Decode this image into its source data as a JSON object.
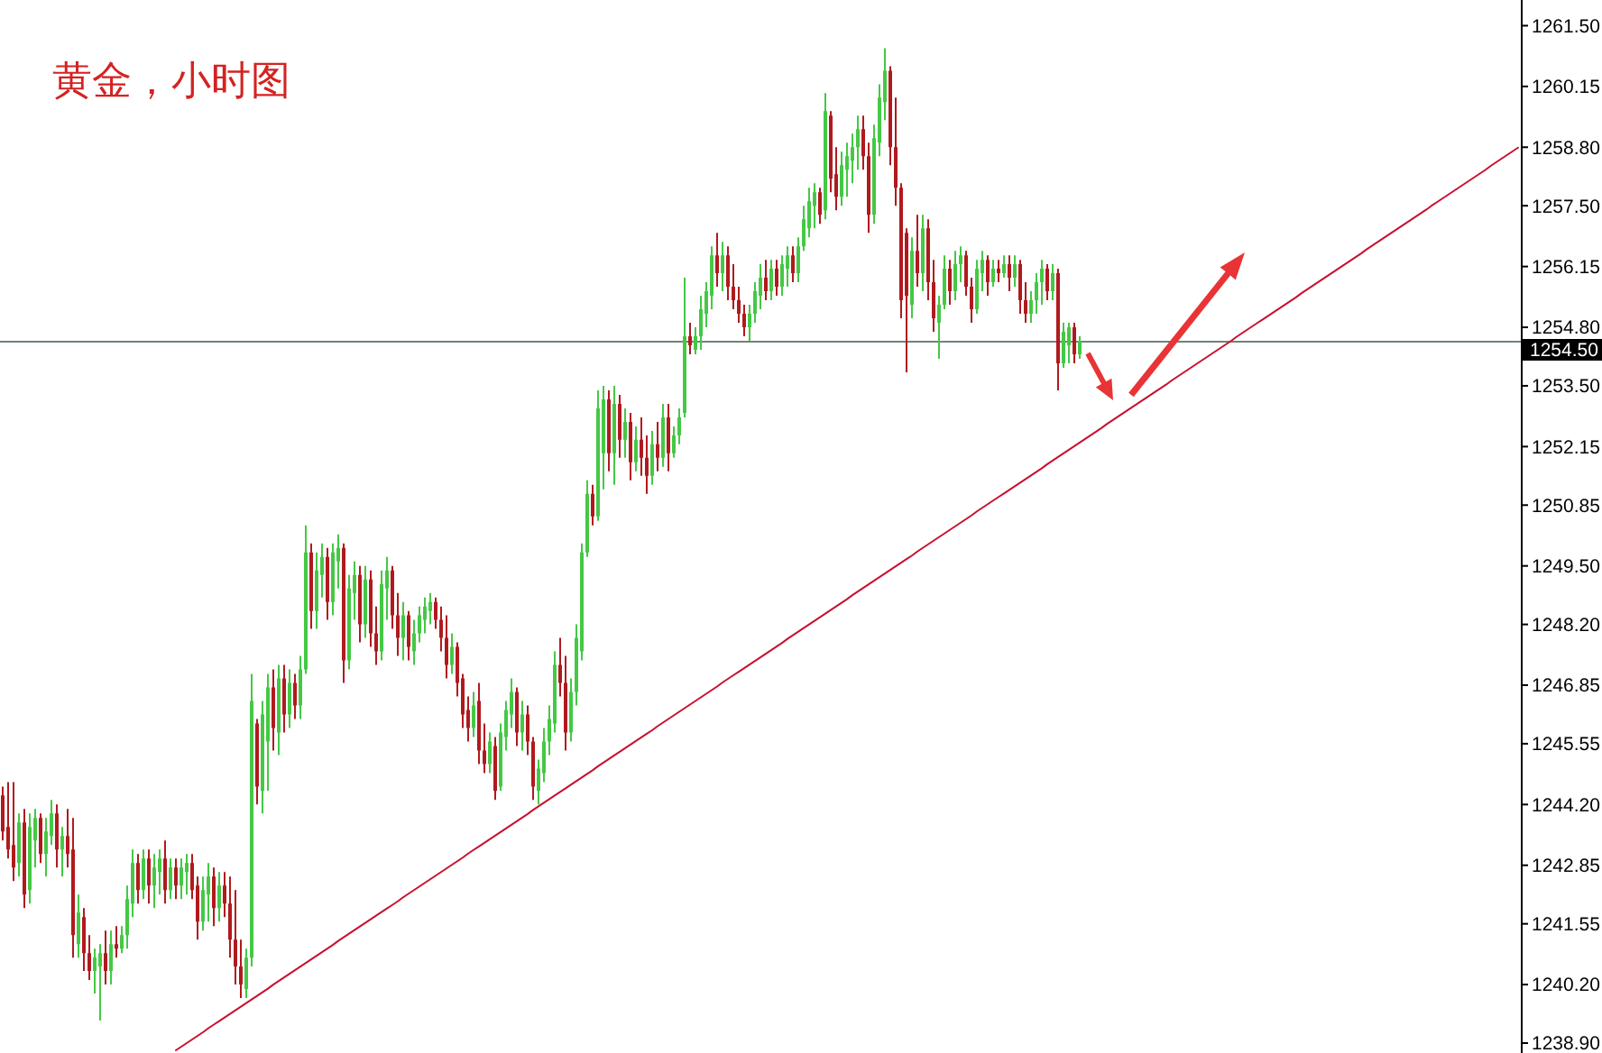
{
  "chart_data": {
    "type": "candlestick",
    "title": "黄金，小时图",
    "categories": [
      null,
      null,
      null,
      null,
      null,
      null,
      null,
      null,
      null,
      null,
      null,
      null,
      null,
      null,
      null,
      null,
      null,
      null,
      null,
      null,
      null,
      null,
      null,
      null,
      null,
      null,
      null,
      null,
      null,
      null,
      null,
      null,
      null,
      null,
      null,
      null,
      null,
      null,
      null,
      null,
      null,
      null,
      null,
      null,
      null,
      null,
      null,
      null,
      null,
      null,
      null,
      null,
      null,
      null,
      null,
      null,
      null,
      null,
      null,
      null,
      null,
      null,
      null,
      null,
      null,
      null,
      null,
      null,
      null,
      null,
      null,
      null,
      null,
      null,
      null,
      null,
      null,
      null,
      null,
      null,
      null,
      null,
      null,
      null,
      null,
      null,
      null,
      null,
      null,
      null,
      null,
      null,
      null,
      null,
      null,
      null,
      null,
      null,
      null,
      null,
      null,
      null,
      null,
      null,
      null,
      null,
      null,
      null,
      null,
      null,
      null,
      null,
      null,
      null,
      null,
      null,
      null,
      null,
      null,
      null,
      null,
      null,
      null,
      null,
      null,
      null,
      null,
      null,
      null,
      null,
      null,
      null,
      null,
      null,
      null,
      null,
      null,
      null,
      null,
      null,
      null,
      null,
      null,
      null,
      null,
      null,
      null,
      null,
      null,
      null,
      null,
      null,
      null,
      null,
      null,
      null,
      null,
      null,
      null,
      null,
      null,
      null,
      null,
      null,
      null,
      null,
      null,
      null,
      null,
      null,
      null,
      null,
      null,
      null,
      null,
      null,
      null,
      null,
      null,
      null,
      null,
      null,
      null,
      null,
      null,
      null,
      null,
      null,
      null,
      null,
      null,
      null,
      null,
      null,
      null,
      null,
      null,
      null,
      null,
      null,
      null,
      null,
      null,
      null,
      null,
      null,
      null,
      null,
      null,
      null,
      null,
      null,
      null,
      null,
      null,
      null,
      null,
      null,
      null,
      null,
      null,
      null,
      null,
      null,
      null,
      null,
      null,
      null,
      null,
      null,
      null,
      null,
      null,
      null,
      null,
      null,
      null,
      null,
      null,
      null,
      null,
      null,
      null,
      null,
      null,
      null,
      null,
      null,
      null,
      null,
      null,
      null,
      null,
      null,
      null,
      null,
      null,
      null,
      null,
      null,
      null,
      null,
      null,
      null,
      null,
      null,
      null,
      null,
      null,
      null,
      null,
      null,
      null,
      null,
      null,
      null,
      null,
      null,
      null,
      null,
      null
    ],
    "ohlc": [
      [
        1244.4,
        1244.6,
        1243.4,
        1243.6
      ],
      [
        1243.7,
        1244.7,
        1243.0,
        1243.2
      ],
      [
        1243.3,
        1244.7,
        1242.5,
        1242.8
      ],
      [
        1242.9,
        1244.0,
        1242.6,
        1243.8
      ],
      [
        1243.8,
        1244.1,
        1241.9,
        1242.2
      ],
      [
        1242.3,
        1244.0,
        1242.0,
        1243.7
      ],
      [
        1243.4,
        1244.1,
        1242.8,
        1243.9
      ],
      [
        1243.9,
        1244.0,
        1242.9,
        1243.1
      ],
      [
        1243.1,
        1243.9,
        1242.6,
        1243.6
      ],
      [
        1243.5,
        1244.3,
        1243.3,
        1244.0
      ],
      [
        1244.0,
        1244.2,
        1242.8,
        1243.2
      ],
      [
        1243.2,
        1243.7,
        1242.6,
        1243.5
      ],
      [
        1243.5,
        1244.1,
        1242.8,
        1243.1
      ],
      [
        1243.2,
        1243.9,
        1240.8,
        1241.3
      ],
      [
        1241.1,
        1242.2,
        1240.8,
        1241.8
      ],
      [
        1241.7,
        1241.9,
        1240.5,
        1240.9
      ],
      [
        1240.9,
        1241.3,
        1240.3,
        1240.5
      ],
      [
        1240.5,
        1241.0,
        1240.0,
        1240.8
      ],
      [
        1240.6,
        1241.1,
        1239.4,
        1240.9
      ],
      [
        1240.9,
        1241.4,
        1240.2,
        1240.5
      ],
      [
        1240.5,
        1241.4,
        1240.2,
        1241.1
      ],
      [
        1241.1,
        1241.5,
        1240.8,
        1241.0
      ],
      [
        1241.0,
        1241.5,
        1240.9,
        1241.3
      ],
      [
        1241.3,
        1242.4,
        1241.0,
        1242.1
      ],
      [
        1242.0,
        1243.2,
        1241.7,
        1242.9
      ],
      [
        1242.9,
        1243.1,
        1242.0,
        1242.3
      ],
      [
        1242.3,
        1243.2,
        1242.1,
        1243.0
      ],
      [
        1243.0,
        1243.2,
        1242.0,
        1242.4
      ],
      [
        1242.4,
        1243.1,
        1241.9,
        1242.8
      ],
      [
        1242.7,
        1243.2,
        1242.2,
        1243.0
      ],
      [
        1243.0,
        1243.4,
        1242.0,
        1242.3
      ],
      [
        1242.3,
        1243.0,
        1242.1,
        1242.8
      ],
      [
        1242.8,
        1243.0,
        1242.1,
        1242.4
      ],
      [
        1242.4,
        1243.0,
        1242.1,
        1242.8
      ],
      [
        1242.7,
        1243.1,
        1242.2,
        1242.9
      ],
      [
        1242.9,
        1243.1,
        1242.1,
        1242.3
      ],
      [
        1242.4,
        1242.6,
        1241.2,
        1241.6
      ],
      [
        1241.6,
        1242.6,
        1241.4,
        1242.3
      ],
      [
        1242.2,
        1242.9,
        1241.6,
        1242.6
      ],
      [
        1242.6,
        1242.8,
        1241.5,
        1241.9
      ],
      [
        1241.9,
        1242.7,
        1241.6,
        1242.4
      ],
      [
        1242.4,
        1242.7,
        1241.7,
        1242.0
      ],
      [
        1242.0,
        1242.6,
        1240.8,
        1241.2
      ],
      [
        1241.2,
        1242.3,
        1240.2,
        1240.6
      ],
      [
        1240.6,
        1241.2,
        1239.9,
        1240.2
      ],
      [
        1240.1,
        1241.0,
        1239.9,
        1240.8
      ],
      [
        1240.8,
        1247.1,
        1240.6,
        1246.5
      ],
      [
        1246.0,
        1246.1,
        1244.2,
        1244.6
      ],
      [
        1244.5,
        1246.5,
        1244.0,
        1246.2
      ],
      [
        1245.6,
        1247.1,
        1244.5,
        1246.8
      ],
      [
        1246.8,
        1247.2,
        1245.4,
        1245.9
      ],
      [
        1245.8,
        1247.3,
        1245.3,
        1247.0
      ],
      [
        1247.0,
        1247.3,
        1245.8,
        1246.2
      ],
      [
        1246.2,
        1247.2,
        1245.9,
        1246.9
      ],
      [
        1246.9,
        1247.1,
        1246.1,
        1246.4
      ],
      [
        1246.4,
        1247.5,
        1246.1,
        1247.2
      ],
      [
        1247.2,
        1250.4,
        1247.1,
        1249.8
      ],
      [
        1249.8,
        1250.0,
        1248.1,
        1248.5
      ],
      [
        1248.5,
        1249.8,
        1248.1,
        1249.4
      ],
      [
        1249.3,
        1250.0,
        1248.8,
        1249.7
      ],
      [
        1249.7,
        1249.9,
        1248.3,
        1248.7
      ],
      [
        1248.7,
        1250.0,
        1248.4,
        1249.8
      ],
      [
        1249.6,
        1250.2,
        1249.0,
        1249.9
      ],
      [
        1249.9,
        1250.0,
        1246.9,
        1247.4
      ],
      [
        1247.4,
        1249.3,
        1247.2,
        1249.0
      ],
      [
        1248.9,
        1249.6,
        1248.3,
        1249.3
      ],
      [
        1249.3,
        1249.5,
        1247.8,
        1248.2
      ],
      [
        1248.2,
        1249.5,
        1247.9,
        1249.2
      ],
      [
        1249.2,
        1249.4,
        1247.7,
        1248.0
      ],
      [
        1248.0,
        1248.6,
        1247.3,
        1247.6
      ],
      [
        1247.6,
        1249.4,
        1247.4,
        1249.1
      ],
      [
        1249.0,
        1249.7,
        1248.3,
        1249.4
      ],
      [
        1249.4,
        1249.5,
        1248.1,
        1248.4
      ],
      [
        1248.4,
        1248.9,
        1247.5,
        1247.9
      ],
      [
        1247.9,
        1248.7,
        1247.4,
        1248.4
      ],
      [
        1248.4,
        1248.5,
        1247.4,
        1247.7
      ],
      [
        1247.6,
        1248.3,
        1247.3,
        1248.0
      ],
      [
        1248.0,
        1248.6,
        1247.8,
        1248.4
      ],
      [
        1248.3,
        1248.8,
        1248.0,
        1248.6
      ],
      [
        1248.5,
        1248.9,
        1248.2,
        1248.7
      ],
      [
        1248.7,
        1248.8,
        1248.1,
        1248.3
      ],
      [
        1248.3,
        1248.6,
        1247.6,
        1247.9
      ],
      [
        1247.9,
        1248.4,
        1247.0,
        1247.3
      ],
      [
        1247.3,
        1248.0,
        1247.1,
        1247.7
      ],
      [
        1247.7,
        1247.8,
        1246.6,
        1246.9
      ],
      [
        1247.0,
        1247.1,
        1245.9,
        1246.2
      ],
      [
        1246.3,
        1246.6,
        1245.6,
        1245.9
      ],
      [
        1245.9,
        1246.7,
        1245.7,
        1246.4
      ],
      [
        1246.5,
        1246.9,
        1245.1,
        1245.4
      ],
      [
        1245.4,
        1246.0,
        1244.9,
        1245.1
      ],
      [
        1245.1,
        1245.8,
        1244.9,
        1245.6
      ],
      [
        1245.5,
        1245.7,
        1244.3,
        1244.5
      ],
      [
        1244.6,
        1246.0,
        1244.5,
        1245.8
      ],
      [
        1245.7,
        1246.5,
        1245.4,
        1246.3
      ],
      [
        1246.2,
        1247.0,
        1245.9,
        1246.7
      ],
      [
        1246.7,
        1246.8,
        1245.5,
        1245.8
      ],
      [
        1245.8,
        1246.5,
        1245.4,
        1246.2
      ],
      [
        1246.2,
        1246.4,
        1245.3,
        1245.6
      ],
      [
        1245.6,
        1245.7,
        1244.3,
        1244.6
      ],
      [
        1244.5,
        1245.2,
        1244.2,
        1245.0
      ],
      [
        1244.9,
        1245.9,
        1244.7,
        1245.6
      ],
      [
        1245.6,
        1246.4,
        1245.3,
        1246.1
      ],
      [
        1246.0,
        1247.6,
        1245.8,
        1247.3
      ],
      [
        1247.3,
        1247.9,
        1246.6,
        1246.9
      ],
      [
        1246.9,
        1247.5,
        1245.4,
        1245.8
      ],
      [
        1245.8,
        1247.0,
        1245.6,
        1246.7
      ],
      [
        1246.7,
        1248.2,
        1246.4,
        1247.9
      ],
      [
        1247.6,
        1250.0,
        1247.4,
        1249.8
      ],
      [
        1249.8,
        1251.4,
        1249.7,
        1251.1
      ],
      [
        1251.1,
        1251.3,
        1250.4,
        1250.6
      ],
      [
        1250.6,
        1253.4,
        1250.5,
        1253.0
      ],
      [
        1252.0,
        1253.5,
        1251.2,
        1253.2
      ],
      [
        1253.2,
        1253.4,
        1251.6,
        1252.0
      ],
      [
        1252.0,
        1253.5,
        1251.3,
        1253.1
      ],
      [
        1253.1,
        1253.3,
        1251.9,
        1252.3
      ],
      [
        1252.3,
        1253.0,
        1251.9,
        1252.7
      ],
      [
        1252.7,
        1252.9,
        1251.4,
        1251.8
      ],
      [
        1251.8,
        1252.6,
        1251.6,
        1252.3
      ],
      [
        1252.3,
        1252.8,
        1251.5,
        1251.9
      ],
      [
        1251.9,
        1252.4,
        1251.1,
        1251.5
      ],
      [
        1251.5,
        1252.5,
        1251.3,
        1252.2
      ],
      [
        1252.2,
        1252.7,
        1251.6,
        1251.9
      ],
      [
        1251.9,
        1253.1,
        1251.7,
        1252.8
      ],
      [
        1252.8,
        1253.1,
        1251.6,
        1252.0
      ],
      [
        1252.0,
        1252.6,
        1251.9,
        1252.4
      ],
      [
        1252.4,
        1253.0,
        1252.2,
        1252.8
      ],
      [
        1252.9,
        1255.9,
        1252.8,
        1254.6
      ],
      [
        1254.6,
        1254.9,
        1254.2,
        1254.4
      ],
      [
        1254.3,
        1254.8,
        1254.2,
        1254.6
      ],
      [
        1254.6,
        1255.5,
        1254.3,
        1255.2
      ],
      [
        1255.1,
        1255.8,
        1254.8,
        1255.6
      ],
      [
        1255.5,
        1256.6,
        1255.2,
        1256.4
      ],
      [
        1256.4,
        1256.9,
        1255.7,
        1256.0
      ],
      [
        1256.0,
        1256.7,
        1255.6,
        1256.4
      ],
      [
        1256.4,
        1256.6,
        1255.4,
        1255.7
      ],
      [
        1255.7,
        1256.2,
        1255.2,
        1255.4
      ],
      [
        1255.4,
        1255.7,
        1254.9,
        1255.1
      ],
      [
        1255.1,
        1255.3,
        1254.6,
        1254.8
      ],
      [
        1254.8,
        1255.3,
        1254.5,
        1255.1
      ],
      [
        1255.1,
        1255.8,
        1254.9,
        1255.6
      ],
      [
        1255.5,
        1256.2,
        1255.2,
        1255.9
      ],
      [
        1255.9,
        1256.3,
        1255.4,
        1255.6
      ],
      [
        1255.6,
        1256.3,
        1255.4,
        1256.1
      ],
      [
        1256.1,
        1256.3,
        1255.5,
        1255.7
      ],
      [
        1255.7,
        1256.4,
        1255.5,
        1256.2
      ],
      [
        1256.1,
        1256.6,
        1255.7,
        1256.4
      ],
      [
        1256.4,
        1256.6,
        1255.8,
        1256.0
      ],
      [
        1256.0,
        1256.8,
        1255.8,
        1256.6
      ],
      [
        1256.6,
        1257.5,
        1256.5,
        1257.2
      ],
      [
        1257.0,
        1257.9,
        1256.8,
        1257.6
      ],
      [
        1257.5,
        1258.0,
        1257.0,
        1257.8
      ],
      [
        1257.8,
        1257.9,
        1257.1,
        1257.3
      ],
      [
        1257.4,
        1260.0,
        1257.2,
        1259.6
      ],
      [
        1259.5,
        1259.6,
        1257.8,
        1258.1
      ],
      [
        1258.2,
        1258.8,
        1257.4,
        1257.7
      ],
      [
        1257.7,
        1258.7,
        1257.5,
        1258.4
      ],
      [
        1258.3,
        1258.9,
        1257.7,
        1258.6
      ],
      [
        1258.5,
        1259.1,
        1258.0,
        1258.8
      ],
      [
        1258.8,
        1259.5,
        1258.3,
        1259.2
      ],
      [
        1259.2,
        1259.5,
        1258.3,
        1258.6
      ],
      [
        1258.6,
        1258.9,
        1256.9,
        1257.3
      ],
      [
        1257.3,
        1259.3,
        1257.1,
        1259.0
      ],
      [
        1258.9,
        1260.2,
        1258.6,
        1259.9
      ],
      [
        1259.8,
        1261.0,
        1259.4,
        1260.5
      ],
      [
        1260.5,
        1260.6,
        1258.4,
        1258.8
      ],
      [
        1258.8,
        1259.9,
        1257.5,
        1257.9
      ],
      [
        1257.9,
        1258.0,
        1255.0,
        1255.4
      ],
      [
        1256.9,
        1257.0,
        1253.8,
        1255.5
      ],
      [
        1255.3,
        1256.8,
        1255.0,
        1256.5
      ],
      [
        1256.5,
        1257.3,
        1255.7,
        1256.0
      ],
      [
        1256.0,
        1257.3,
        1255.6,
        1257.0
      ],
      [
        1257.0,
        1257.2,
        1255.4,
        1255.8
      ],
      [
        1255.8,
        1256.3,
        1254.7,
        1255.0
      ],
      [
        1254.9,
        1255.5,
        1254.1,
        1255.3
      ],
      [
        1255.3,
        1256.4,
        1255.2,
        1256.1
      ],
      [
        1256.1,
        1256.3,
        1255.3,
        1255.6
      ],
      [
        1255.6,
        1256.5,
        1255.4,
        1256.2
      ],
      [
        1256.2,
        1256.6,
        1255.8,
        1256.4
      ],
      [
        1256.4,
        1256.5,
        1255.5,
        1255.7
      ],
      [
        1255.7,
        1255.9,
        1254.9,
        1255.2
      ],
      [
        1255.2,
        1256.3,
        1255.1,
        1256.1
      ],
      [
        1256.0,
        1256.5,
        1255.6,
        1256.3
      ],
      [
        1256.3,
        1256.4,
        1255.5,
        1255.8
      ],
      [
        1255.8,
        1256.3,
        1255.7,
        1256.1
      ],
      [
        1256.1,
        1256.3,
        1255.8,
        1256.0
      ],
      [
        1256.0,
        1256.4,
        1255.9,
        1256.2
      ],
      [
        1256.2,
        1256.4,
        1255.6,
        1255.9
      ],
      [
        1255.9,
        1256.4,
        1255.7,
        1256.2
      ],
      [
        1256.2,
        1256.3,
        1255.1,
        1255.4
      ],
      [
        1255.4,
        1255.8,
        1254.9,
        1255.1
      ],
      [
        1255.1,
        1255.6,
        1254.9,
        1255.4
      ],
      [
        1255.4,
        1256.0,
        1255.1,
        1255.8
      ],
      [
        1255.8,
        1256.3,
        1255.3,
        1256.1
      ],
      [
        1256.1,
        1256.2,
        1255.4,
        1255.6
      ],
      [
        1255.6,
        1256.2,
        1255.4,
        1256.0
      ],
      [
        1256.0,
        1256.1,
        1253.4,
        1254.0
      ],
      [
        1254.0,
        1254.9,
        1253.9,
        1254.7
      ],
      [
        1254.4,
        1254.9,
        1254.0,
        1254.8
      ],
      [
        1254.8,
        1254.9,
        1254.0,
        1254.2
      ],
      [
        1254.2,
        1254.6,
        1254.1,
        1254.5
      ],
      null,
      null,
      null,
      null,
      null,
      null,
      null,
      null,
      null,
      null,
      null,
      null,
      null,
      null,
      null,
      null,
      null,
      null,
      null,
      null,
      null,
      null,
      null,
      null,
      null,
      null,
      null,
      null,
      null,
      null,
      null,
      null,
      null,
      null,
      null,
      null,
      null,
      null,
      null,
      null,
      null,
      null,
      null,
      null,
      null,
      null,
      null,
      null,
      null,
      null,
      null,
      null,
      null,
      null,
      null,
      null,
      null,
      null,
      null,
      null,
      null,
      null,
      null,
      null,
      null,
      null,
      null,
      null,
      null,
      null,
      null,
      null,
      null,
      null,
      null,
      null,
      null,
      null,
      null,
      null,
      null
    ],
    "colors": [
      "#b01a1e",
      "#b01a1e",
      "#b01a1e",
      "#45c845",
      "#b01a1e",
      "#45c845",
      "#45c845",
      "#b01a1e",
      "#45c845",
      "#45c845",
      "#b01a1e",
      "#45c845",
      "#b01a1e",
      "#b01a1e",
      "#45c845",
      "#b01a1e",
      "#b01a1e",
      "#45c845",
      "#45c845",
      "#b01a1e",
      "#45c845",
      "#b01a1e",
      "#45c845",
      "#45c845",
      "#45c845",
      "#b01a1e",
      "#45c845",
      "#b01a1e",
      "#45c845",
      "#45c845",
      "#b01a1e",
      "#45c845",
      "#b01a1e",
      "#45c845",
      "#45c845",
      "#b01a1e",
      "#b01a1e",
      "#45c845",
      "#45c845",
      "#b01a1e",
      "#45c845",
      "#b01a1e",
      "#b01a1e",
      "#b01a1e",
      "#b01a1e",
      "#45c845",
      "#45c845",
      "#b01a1e",
      "#45c845",
      "#45c845",
      "#b01a1e",
      "#45c845",
      "#b01a1e",
      "#45c845",
      "#b01a1e",
      "#45c845",
      "#45c845",
      "#b01a1e",
      "#45c845",
      "#45c845",
      "#b01a1e",
      "#45c845",
      "#45c845",
      "#b01a1e",
      "#45c845",
      "#45c845",
      "#b01a1e",
      "#45c845",
      "#b01a1e",
      "#b01a1e",
      "#45c845",
      "#45c845",
      "#b01a1e",
      "#b01a1e",
      "#45c845",
      "#b01a1e",
      "#45c845",
      "#45c845",
      "#45c845",
      "#45c845",
      "#b01a1e",
      "#b01a1e",
      "#b01a1e",
      "#45c845",
      "#b01a1e",
      "#b01a1e",
      "#b01a1e",
      "#45c845",
      "#b01a1e",
      "#b01a1e",
      "#45c845",
      "#b01a1e",
      "#45c845",
      "#45c845",
      "#45c845",
      "#b01a1e",
      "#45c845",
      "#b01a1e",
      "#b01a1e",
      "#45c845",
      "#45c845",
      "#45c845",
      "#45c845",
      "#b01a1e",
      "#b01a1e",
      "#45c845",
      "#45c845",
      "#45c845",
      "#45c845",
      "#b01a1e",
      "#45c845",
      "#45c845",
      "#b01a1e",
      "#45c845",
      "#b01a1e",
      "#45c845",
      "#b01a1e",
      "#45c845",
      "#b01a1e",
      "#b01a1e",
      "#45c845",
      "#b01a1e",
      "#45c845",
      "#b01a1e",
      "#45c845",
      "#45c845",
      "#45c845",
      "#b01a1e",
      "#45c845",
      "#45c845",
      "#45c845",
      "#45c845",
      "#b01a1e",
      "#45c845",
      "#b01a1e",
      "#b01a1e",
      "#b01a1e",
      "#b01a1e",
      "#45c845",
      "#45c845",
      "#45c845",
      "#b01a1e",
      "#45c845",
      "#b01a1e",
      "#45c845",
      "#45c845",
      "#b01a1e",
      "#45c845",
      "#45c845",
      "#45c845",
      "#45c845",
      "#b01a1e",
      "#45c845",
      "#b01a1e",
      "#b01a1e",
      "#45c845",
      "#45c845",
      "#45c845",
      "#45c845",
      "#b01a1e",
      "#b01a1e",
      "#45c845",
      "#45c845",
      "#45c845",
      "#b01a1e",
      "#b01a1e",
      "#b01a1e",
      "#b01a1e",
      "#45c845",
      "#b01a1e",
      "#45c845",
      "#b01a1e",
      "#b01a1e",
      "#45c845",
      "#45c845",
      "#b01a1e",
      "#45c845",
      "#45c845",
      "#b01a1e",
      "#b01a1e",
      "#45c845",
      "#45c845",
      "#b01a1e",
      "#45c845",
      "#b01a1e",
      "#45c845",
      "#b01a1e",
      "#45c845",
      "#b01a1e",
      "#b01a1e",
      "#45c845",
      "#45c845",
      "#45c845",
      "#b01a1e",
      "#45c845",
      "#b01a1e",
      "#45c845",
      "#45c845",
      "#b01a1e",
      "#45c845",
      null,
      null,
      null,
      null,
      null,
      null,
      null,
      null,
      null,
      null,
      null,
      null,
      null,
      null,
      null,
      null,
      null,
      null,
      null,
      null,
      null,
      null,
      null,
      null,
      null,
      null,
      null,
      null,
      null,
      null,
      null,
      null,
      null,
      null,
      null,
      null,
      null,
      null,
      null,
      null,
      null,
      null,
      null,
      null,
      null,
      null,
      null,
      null,
      null,
      null,
      null,
      null,
      null,
      null,
      null,
      null,
      null,
      null,
      null,
      null,
      null,
      null,
      null,
      null,
      null,
      null,
      null,
      null,
      null,
      null,
      null,
      null,
      null,
      null,
      null,
      null,
      null,
      null,
      null,
      null,
      null
    ],
    "series": [
      {
        "type": "line",
        "color": "#c8102e",
        "values": [
          null,
          null,
          null,
          null,
          null,
          null,
          null,
          null,
          null,
          null,
          null,
          null,
          null,
          null,
          null,
          null,
          null,
          null,
          null,
          null,
          null,
          null,
          null,
          null,
          null,
          null,
          null,
          null,
          null,
          null,
          null,
          null,
          1238.74,
          1238.82,
          1238.9,
          1238.98,
          1239.06,
          1239.14,
          1239.23,
          1239.31,
          1239.39,
          1239.47,
          1239.55,
          1239.63,
          1239.71,
          1239.79,
          1239.87,
          1239.95,
          1240.03,
          1240.11,
          1240.2,
          1240.28,
          1240.36,
          1240.44,
          1240.52,
          1240.6,
          1240.68,
          1240.76,
          1240.84,
          1240.92,
          1241.0,
          1241.08,
          1241.17,
          1241.25,
          1241.33,
          1241.41,
          1241.49,
          1241.57,
          1241.65,
          1241.73,
          1241.81,
          1241.89,
          1241.97,
          1242.05,
          1242.14,
          1242.22,
          1242.3,
          1242.38,
          1242.46,
          1242.54,
          1242.62,
          1242.7,
          1242.78,
          1242.86,
          1242.94,
          1243.02,
          1243.11,
          1243.19,
          1243.27,
          1243.35,
          1243.43,
          1243.51,
          1243.59,
          1243.67,
          1243.75,
          1243.83,
          1243.91,
          1243.99,
          1244.08,
          1244.16,
          1244.24,
          1244.32,
          1244.4,
          1244.48,
          1244.56,
          1244.64,
          1244.72,
          1244.8,
          1244.88,
          1244.96,
          1245.05,
          1245.13,
          1245.21,
          1245.29,
          1245.37,
          1245.45,
          1245.53,
          1245.61,
          1245.69,
          1245.77,
          1245.85,
          1245.94,
          1246.02,
          1246.1,
          1246.18,
          1246.26,
          1246.34,
          1246.42,
          1246.5,
          1246.58,
          1246.66,
          1246.74,
          1246.82,
          1246.91,
          1246.99,
          1247.07,
          1247.15,
          1247.23,
          1247.31,
          1247.39,
          1247.47,
          1247.55,
          1247.63,
          1247.71,
          1247.79,
          1247.88,
          1247.96,
          1248.04,
          1248.12,
          1248.2,
          1248.28,
          1248.36,
          1248.44,
          1248.52,
          1248.6,
          1248.68,
          1248.76,
          1248.85,
          1248.93,
          1249.01,
          1249.09,
          1249.17,
          1249.25,
          1249.33,
          1249.41,
          1249.49,
          1249.57,
          1249.65,
          1249.73,
          1249.82,
          1249.9,
          1249.98,
          1250.06,
          1250.14,
          1250.22,
          1250.3,
          1250.38,
          1250.46,
          1250.54,
          1250.62,
          1250.71,
          1250.79,
          1250.87,
          1250.95,
          1251.03,
          1251.11,
          1251.19,
          1251.27,
          1251.35,
          1251.43,
          1251.51,
          1251.59,
          1251.67,
          1251.76,
          1251.84,
          1251.92,
          1252.0,
          1252.08,
          1252.16,
          1252.24,
          1252.32,
          1252.4,
          1252.48,
          1252.56,
          1252.65,
          1252.73,
          1252.81,
          1252.89,
          1252.97,
          1253.05,
          1253.13,
          1253.21,
          1253.29,
          1253.37,
          1253.45,
          1253.53,
          1253.62,
          1253.7,
          1253.78,
          1253.86,
          1253.94,
          1254.02,
          1254.1,
          1254.18,
          1254.26,
          1254.34,
          1254.42,
          1254.5,
          1254.59,
          1254.67,
          1254.75,
          1254.83,
          1254.91,
          1254.99,
          1255.07,
          1255.15,
          1255.23,
          1255.31,
          1255.39,
          1255.47,
          1255.56,
          1255.64,
          1255.72,
          1255.8,
          1255.88,
          1255.96,
          1256.04,
          1256.12,
          1256.2,
          1256.28,
          1256.36,
          1256.44,
          1256.53,
          1256.61,
          1256.69,
          1256.77,
          1256.85,
          1256.93,
          1257.01,
          1257.09,
          1257.17,
          1257.25,
          1257.33,
          1257.41,
          1257.5,
          1257.58,
          1257.66,
          1257.74,
          1257.82,
          1257.9,
          1257.98,
          1258.06,
          1258.14,
          1258.22,
          1258.3,
          1258.39,
          1258.47,
          1258.55,
          1258.63,
          1258.71,
          1258.79
        ]
      }
    ],
    "ylim": [
      1238.68,
      1262.07
    ],
    "yticks": [
      {
        "value": 1238.9,
        "label": "1238.90"
      },
      {
        "value": 1240.2,
        "label": "1240.20"
      },
      {
        "value": 1241.55,
        "label": "1241.55"
      },
      {
        "value": 1242.85,
        "label": "1242.85"
      },
      {
        "value": 1244.2,
        "label": "1244.20"
      },
      {
        "value": 1245.55,
        "label": "1245.55"
      },
      {
        "value": 1246.85,
        "label": "1246.85"
      },
      {
        "value": 1248.2,
        "label": "1248.20"
      },
      {
        "value": 1249.5,
        "label": "1249.50"
      },
      {
        "value": 1250.85,
        "label": "1250.85"
      },
      {
        "value": 1252.15,
        "label": "1252.15"
      },
      {
        "value": 1253.5,
        "label": "1253.50"
      },
      {
        "value": 1254.8,
        "label": "1254.80"
      },
      {
        "value": 1256.15,
        "label": "1256.15"
      },
      {
        "value": 1257.5,
        "label": "1257.50"
      },
      {
        "value": 1258.8,
        "label": "1258.80"
      },
      {
        "value": 1260.15,
        "label": "1260.15"
      },
      {
        "value": 1261.5,
        "label": "1261.50"
      }
    ],
    "ref_lines": [
      {
        "axis": "y",
        "value": 1254.5,
        "label": "1254.50",
        "color": "#6f8378"
      }
    ],
    "tick_labels": "y"
  }
}
